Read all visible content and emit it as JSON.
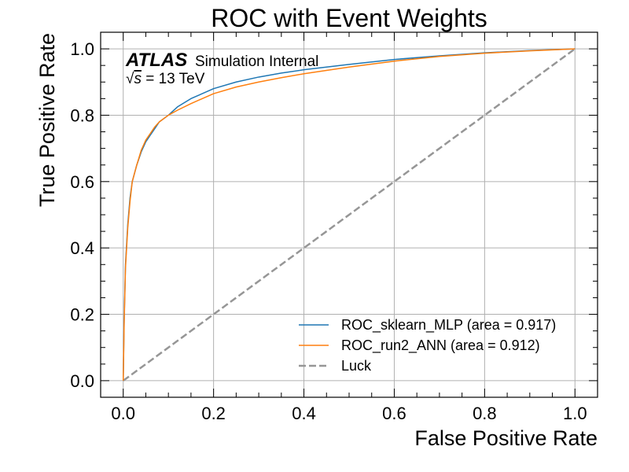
{
  "chart_data": {
    "type": "line",
    "title": "ROC with Event Weights",
    "xlabel": "False Positive Rate",
    "ylabel": "True Positive Rate",
    "xlim": [
      -0.05,
      1.05
    ],
    "ylim": [
      -0.05,
      1.05
    ],
    "xticks": [
      0.0,
      0.2,
      0.4,
      0.6,
      0.8,
      1.0
    ],
    "yticks": [
      0.0,
      0.2,
      0.4,
      0.6,
      0.8,
      1.0
    ],
    "xtick_labels": [
      "0.0",
      "0.2",
      "0.4",
      "0.6",
      "0.8",
      "1.0"
    ],
    "ytick_labels": [
      "0.0",
      "0.2",
      "0.4",
      "0.6",
      "0.8",
      "1.0"
    ],
    "grid": true,
    "legend_position": "lower-right",
    "atlas_label": {
      "brand": "ATLAS",
      "status": "Simulation Internal",
      "energy_sqrt": "√",
      "energy_s": "s",
      "energy_value": " = 13 TeV"
    },
    "series": [
      {
        "name": "ROC_sklearn_MLP (area = 0.917)",
        "color": "#1f77b4",
        "style": "solid",
        "x": [
          0.0,
          0.002,
          0.005,
          0.01,
          0.015,
          0.02,
          0.03,
          0.04,
          0.05,
          0.06,
          0.07,
          0.08,
          0.1,
          0.12,
          0.15,
          0.2,
          0.25,
          0.3,
          0.35,
          0.4,
          0.5,
          0.6,
          0.7,
          0.8,
          0.9,
          1.0
        ],
        "y": [
          0.0,
          0.18,
          0.35,
          0.47,
          0.55,
          0.6,
          0.65,
          0.69,
          0.72,
          0.74,
          0.76,
          0.78,
          0.8,
          0.825,
          0.85,
          0.88,
          0.9,
          0.915,
          0.927,
          0.937,
          0.953,
          0.968,
          0.979,
          0.988,
          0.995,
          1.0
        ]
      },
      {
        "name": "ROC_run2_ANN (area = 0.912)",
        "color": "#ff7f0e",
        "style": "solid",
        "x": [
          0.0,
          0.002,
          0.005,
          0.01,
          0.015,
          0.02,
          0.03,
          0.04,
          0.05,
          0.06,
          0.07,
          0.08,
          0.1,
          0.12,
          0.15,
          0.2,
          0.25,
          0.3,
          0.35,
          0.4,
          0.5,
          0.6,
          0.7,
          0.8,
          0.9,
          1.0
        ],
        "y": [
          0.0,
          0.17,
          0.34,
          0.46,
          0.54,
          0.6,
          0.65,
          0.695,
          0.725,
          0.745,
          0.765,
          0.78,
          0.8,
          0.815,
          0.835,
          0.865,
          0.885,
          0.9,
          0.913,
          0.925,
          0.945,
          0.963,
          0.977,
          0.987,
          0.994,
          1.0
        ]
      },
      {
        "name": "Luck",
        "color": "#969696",
        "style": "dashed",
        "x": [
          0.0,
          1.0
        ],
        "y": [
          0.0,
          1.0
        ]
      }
    ]
  }
}
